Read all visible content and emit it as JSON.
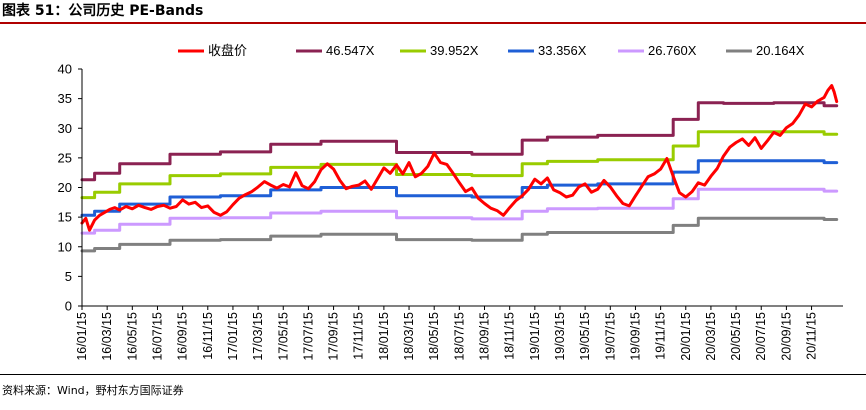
{
  "figure": {
    "title": "图表 51：公司历史 PE-Bands",
    "source": "资料来源：Wind，野村东方国际证券"
  },
  "chart_data": {
    "type": "line",
    "ylim": [
      0,
      40
    ],
    "yticks": [
      0,
      5,
      10,
      15,
      20,
      25,
      30,
      35,
      40
    ],
    "xticks": [
      "16/01/15",
      "16/03/15",
      "16/05/15",
      "16/07/15",
      "16/09/15",
      "16/11/15",
      "17/01/15",
      "17/03/15",
      "17/05/15",
      "17/07/15",
      "17/09/15",
      "17/11/15",
      "18/01/15",
      "18/03/15",
      "18/05/15",
      "18/07/15",
      "18/09/15",
      "18/11/15",
      "19/01/15",
      "19/03/15",
      "19/05/15",
      "19/07/15",
      "19/09/15",
      "19/11/15",
      "20/01/15",
      "20/03/15",
      "20/05/15",
      "20/07/15",
      "20/09/15",
      "20/11/15"
    ],
    "xrange": [
      0,
      60.5
    ],
    "grid": false,
    "legend_position": "top",
    "series": [
      {
        "name": "收盘价",
        "color": "#ff0000",
        "kind": "price",
        "x": [
          0,
          0.3,
          0.6,
          1,
          1.4,
          1.8,
          2.2,
          2.6,
          3,
          3.5,
          4,
          4.5,
          5,
          5.5,
          6,
          6.5,
          7,
          7.5,
          8,
          8.5,
          9,
          9.5,
          10,
          10.5,
          11,
          11.5,
          12,
          12.5,
          13,
          13.5,
          14,
          14.5,
          15,
          15.5,
          16,
          16.5,
          17,
          17.5,
          18,
          18.5,
          19,
          19.5,
          20,
          20.5,
          21,
          21.5,
          22,
          22.5,
          23,
          23.5,
          24,
          24.5,
          25,
          25.5,
          26,
          26.5,
          27,
          27.5,
          28,
          28.5,
          29,
          29.5,
          30,
          30.5,
          31,
          31.5,
          32,
          32.5,
          33,
          33.5,
          34,
          34.5,
          35,
          35.5,
          36,
          36.5,
          37,
          37.5,
          38,
          38.5,
          39,
          39.5,
          40,
          40.5,
          41,
          41.5,
          42,
          42.5,
          43,
          43.5,
          44,
          44.5,
          45,
          45.5,
          46,
          46.5,
          47,
          47.5,
          48,
          48.5,
          49,
          49.5,
          50,
          50.5,
          51,
          51.5,
          52,
          52.5,
          53,
          53.5,
          54,
          54.5,
          55,
          55.5,
          56,
          56.5,
          57,
          57.5,
          58,
          58.5,
          59,
          59.3,
          59.6,
          59.8,
          60
        ],
        "values": [
          14,
          14.8,
          12.8,
          14.5,
          15.3,
          15.8,
          16.3,
          16.6,
          16.2,
          16.8,
          16.4,
          17,
          16.6,
          16.3,
          16.8,
          17,
          16.5,
          16.8,
          17.9,
          17.2,
          17.5,
          16.6,
          16.9,
          15.8,
          15.3,
          15.9,
          17.1,
          18.2,
          18.8,
          19.3,
          20.1,
          21,
          20.4,
          19.9,
          20.5,
          20.1,
          22.5,
          20.3,
          19.8,
          21,
          23,
          24,
          23.1,
          21.2,
          19.8,
          20.2,
          20.4,
          21.1,
          19.7,
          21.5,
          23.3,
          22.4,
          23.8,
          22.3,
          24.2,
          21.8,
          22.4,
          23.6,
          25.8,
          24.2,
          23.9,
          22.4,
          20.8,
          19.3,
          19.9,
          18.2,
          17.3,
          16.5,
          16.1,
          15.3,
          16.6,
          17.8,
          18.6,
          19.7,
          21.4,
          20.6,
          21.6,
          19.6,
          19.1,
          18.4,
          18.7,
          20.1,
          20.6,
          19.2,
          19.7,
          21.2,
          20.1,
          18.6,
          17.3,
          16.9,
          18.6,
          20.2,
          21.8,
          22.3,
          23.1,
          24.9,
          21.9,
          19.1,
          18.4,
          19.3,
          20.8,
          20.4,
          21.9,
          23.2,
          25.3,
          26.8,
          27.6,
          28.2,
          27.1,
          28.4,
          26.6,
          27.9,
          29.3,
          28.8,
          30.1,
          30.8,
          32.2,
          34.1,
          33.6,
          34.6,
          35.2,
          36.4,
          37.2,
          36.1,
          34.5
        ]
      },
      {
        "name": "46.547X",
        "color": "#8b2252",
        "kind": "band",
        "x": [
          0,
          1,
          1,
          3,
          3,
          7,
          7,
          11,
          11,
          15,
          15,
          19,
          19,
          25,
          25,
          31,
          31,
          35,
          35,
          37,
          37,
          41,
          41,
          47,
          47,
          49,
          49,
          51,
          51,
          55,
          55,
          59,
          59,
          60
        ],
        "values": [
          21.3,
          21.3,
          22.4,
          22.4,
          24,
          24,
          25.6,
          25.6,
          26,
          26,
          27.3,
          27.3,
          27.8,
          27.8,
          25.9,
          25.9,
          25.6,
          25.6,
          28,
          28,
          28.5,
          28.5,
          28.8,
          28.8,
          31.5,
          31.5,
          34.3,
          34.3,
          34.2,
          34.2,
          34.3,
          34.3,
          33.8,
          33.8
        ]
      },
      {
        "name": "39.952X",
        "color": "#99cc00",
        "kind": "band",
        "x": [
          0,
          1,
          1,
          3,
          3,
          7,
          7,
          11,
          11,
          15,
          15,
          19,
          19,
          25,
          25,
          31,
          31,
          35,
          35,
          37,
          37,
          41,
          41,
          47,
          47,
          49,
          49,
          51,
          51,
          55,
          55,
          59,
          59,
          60
        ],
        "values": [
          18.3,
          18.3,
          19.2,
          19.2,
          20.6,
          20.6,
          22,
          22,
          22.3,
          22.3,
          23.4,
          23.4,
          23.9,
          23.9,
          22.2,
          22.2,
          22,
          22,
          24,
          24,
          24.4,
          24.4,
          24.7,
          24.7,
          27,
          27,
          29.4,
          29.4,
          29.4,
          29.4,
          29.4,
          29.4,
          29,
          29
        ]
      },
      {
        "name": "33.356X",
        "color": "#1f5fd6",
        "kind": "band",
        "x": [
          0,
          1,
          1,
          3,
          3,
          7,
          7,
          11,
          11,
          15,
          15,
          19,
          19,
          25,
          25,
          31,
          31,
          35,
          35,
          37,
          37,
          41,
          41,
          47,
          47,
          49,
          49,
          51,
          51,
          55,
          55,
          59,
          59,
          60
        ],
        "values": [
          15.3,
          15.3,
          16,
          16,
          17.2,
          17.2,
          18.4,
          18.4,
          18.6,
          18.6,
          19.6,
          19.6,
          20,
          20,
          18.6,
          18.6,
          18.4,
          18.4,
          20,
          20,
          20.4,
          20.4,
          20.6,
          20.6,
          22.6,
          22.6,
          24.5,
          24.5,
          24.5,
          24.5,
          24.5,
          24.5,
          24.2,
          24.2
        ]
      },
      {
        "name": "26.760X",
        "color": "#cc99ff",
        "kind": "band",
        "x": [
          0,
          1,
          1,
          3,
          3,
          7,
          7,
          11,
          11,
          15,
          15,
          19,
          19,
          25,
          25,
          31,
          31,
          35,
          35,
          37,
          37,
          41,
          41,
          47,
          47,
          49,
          49,
          51,
          51,
          55,
          55,
          59,
          59,
          60
        ],
        "values": [
          12.3,
          12.3,
          12.8,
          12.8,
          13.8,
          13.8,
          14.8,
          14.8,
          14.9,
          14.9,
          15.7,
          15.7,
          16,
          16,
          14.9,
          14.9,
          14.7,
          14.7,
          16,
          16,
          16.4,
          16.4,
          16.5,
          16.5,
          18.1,
          18.1,
          19.7,
          19.7,
          19.7,
          19.7,
          19.7,
          19.7,
          19.4,
          19.4
        ]
      },
      {
        "name": "20.164X",
        "color": "#808080",
        "kind": "band",
        "x": [
          0,
          1,
          1,
          3,
          3,
          7,
          7,
          11,
          11,
          15,
          15,
          19,
          19,
          25,
          25,
          31,
          31,
          35,
          35,
          37,
          37,
          41,
          41,
          47,
          47,
          49,
          49,
          51,
          51,
          55,
          55,
          59,
          59,
          60
        ],
        "values": [
          9.3,
          9.3,
          9.7,
          9.7,
          10.4,
          10.4,
          11.1,
          11.1,
          11.2,
          11.2,
          11.8,
          11.8,
          12.1,
          12.1,
          11.2,
          11.2,
          11.1,
          11.1,
          12.1,
          12.1,
          12.4,
          12.4,
          12.4,
          12.4,
          13.6,
          13.6,
          14.8,
          14.8,
          14.8,
          14.8,
          14.8,
          14.8,
          14.6,
          14.6
        ]
      }
    ]
  }
}
